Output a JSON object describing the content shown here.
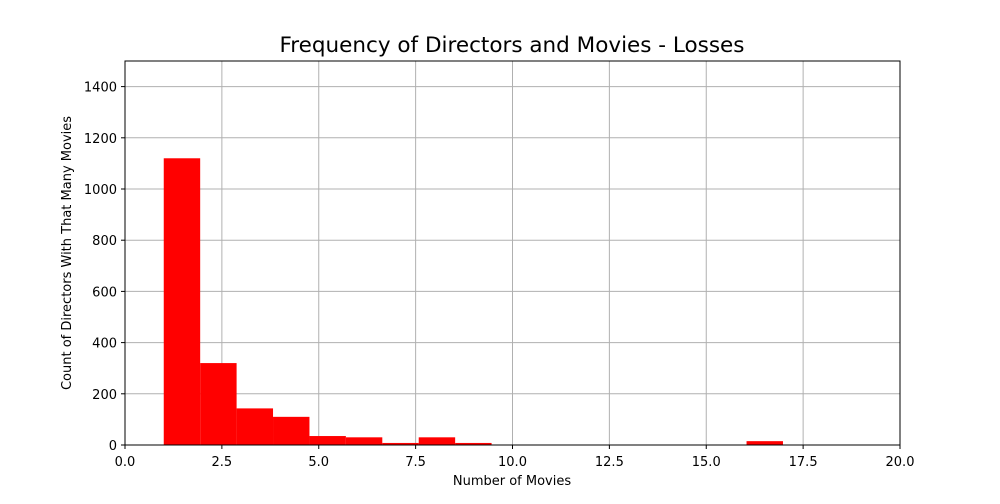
{
  "chart_data": {
    "type": "bar",
    "title": "Frequency of Directors and Movies - Losses",
    "xlabel": "Number of Movies",
    "ylabel": "Count of Directors With That Many Movies",
    "xlim": [
      0,
      20
    ],
    "ylim": [
      0,
      1500
    ],
    "xticks": [
      "0.0",
      "2.5",
      "5.0",
      "7.5",
      "10.0",
      "12.5",
      "15.0",
      "17.5",
      "20.0"
    ],
    "yticks": [
      "0",
      "200",
      "400",
      "600",
      "800",
      "1000",
      "1200",
      "1400"
    ],
    "grid": true,
    "bar_color": "#ff0000",
    "bins": [
      {
        "x0": 1.0,
        "x1": 1.94,
        "value": 1120
      },
      {
        "x0": 1.94,
        "x1": 2.88,
        "value": 320
      },
      {
        "x0": 2.88,
        "x1": 3.82,
        "value": 143
      },
      {
        "x0": 3.82,
        "x1": 4.76,
        "value": 110
      },
      {
        "x0": 4.76,
        "x1": 5.7,
        "value": 35
      },
      {
        "x0": 5.7,
        "x1": 6.64,
        "value": 30
      },
      {
        "x0": 6.64,
        "x1": 7.58,
        "value": 8
      },
      {
        "x0": 7.58,
        "x1": 8.52,
        "value": 30
      },
      {
        "x0": 8.52,
        "x1": 9.46,
        "value": 8
      },
      {
        "x0": 16.04,
        "x1": 16.98,
        "value": 15
      }
    ]
  }
}
